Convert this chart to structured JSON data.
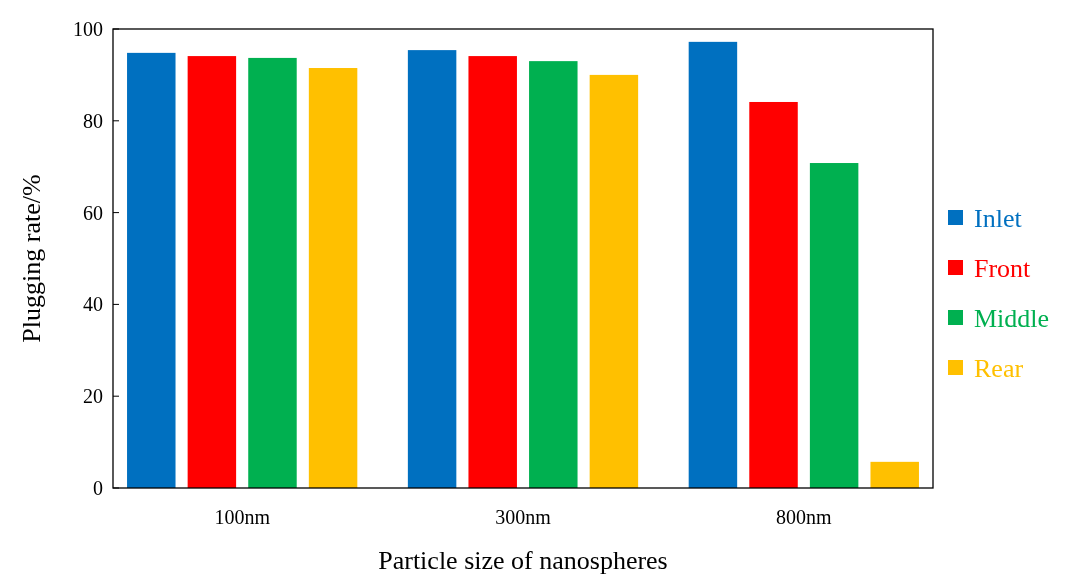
{
  "chart_data": {
    "type": "bar",
    "xlabel": "Particle size of nanospheres",
    "ylabel": "Plugging rate/%",
    "categories": [
      "100nm",
      "300nm",
      "800nm"
    ],
    "series": [
      {
        "name": "Inlet",
        "color": "#0070c0",
        "values": [
          94.8,
          95.4,
          97.2
        ]
      },
      {
        "name": "Front",
        "color": "#ff0000",
        "values": [
          94.1,
          94.1,
          84.1
        ]
      },
      {
        "name": "Middle",
        "color": "#00b050",
        "values": [
          93.7,
          93.0,
          70.8
        ]
      },
      {
        "name": "Rear",
        "color": "#ffc000",
        "values": [
          91.5,
          90.0,
          5.7
        ]
      }
    ],
    "ylim": [
      0,
      100
    ],
    "yticks": [
      0,
      20,
      40,
      60,
      80,
      100
    ],
    "grid": false,
    "legend": "right"
  }
}
